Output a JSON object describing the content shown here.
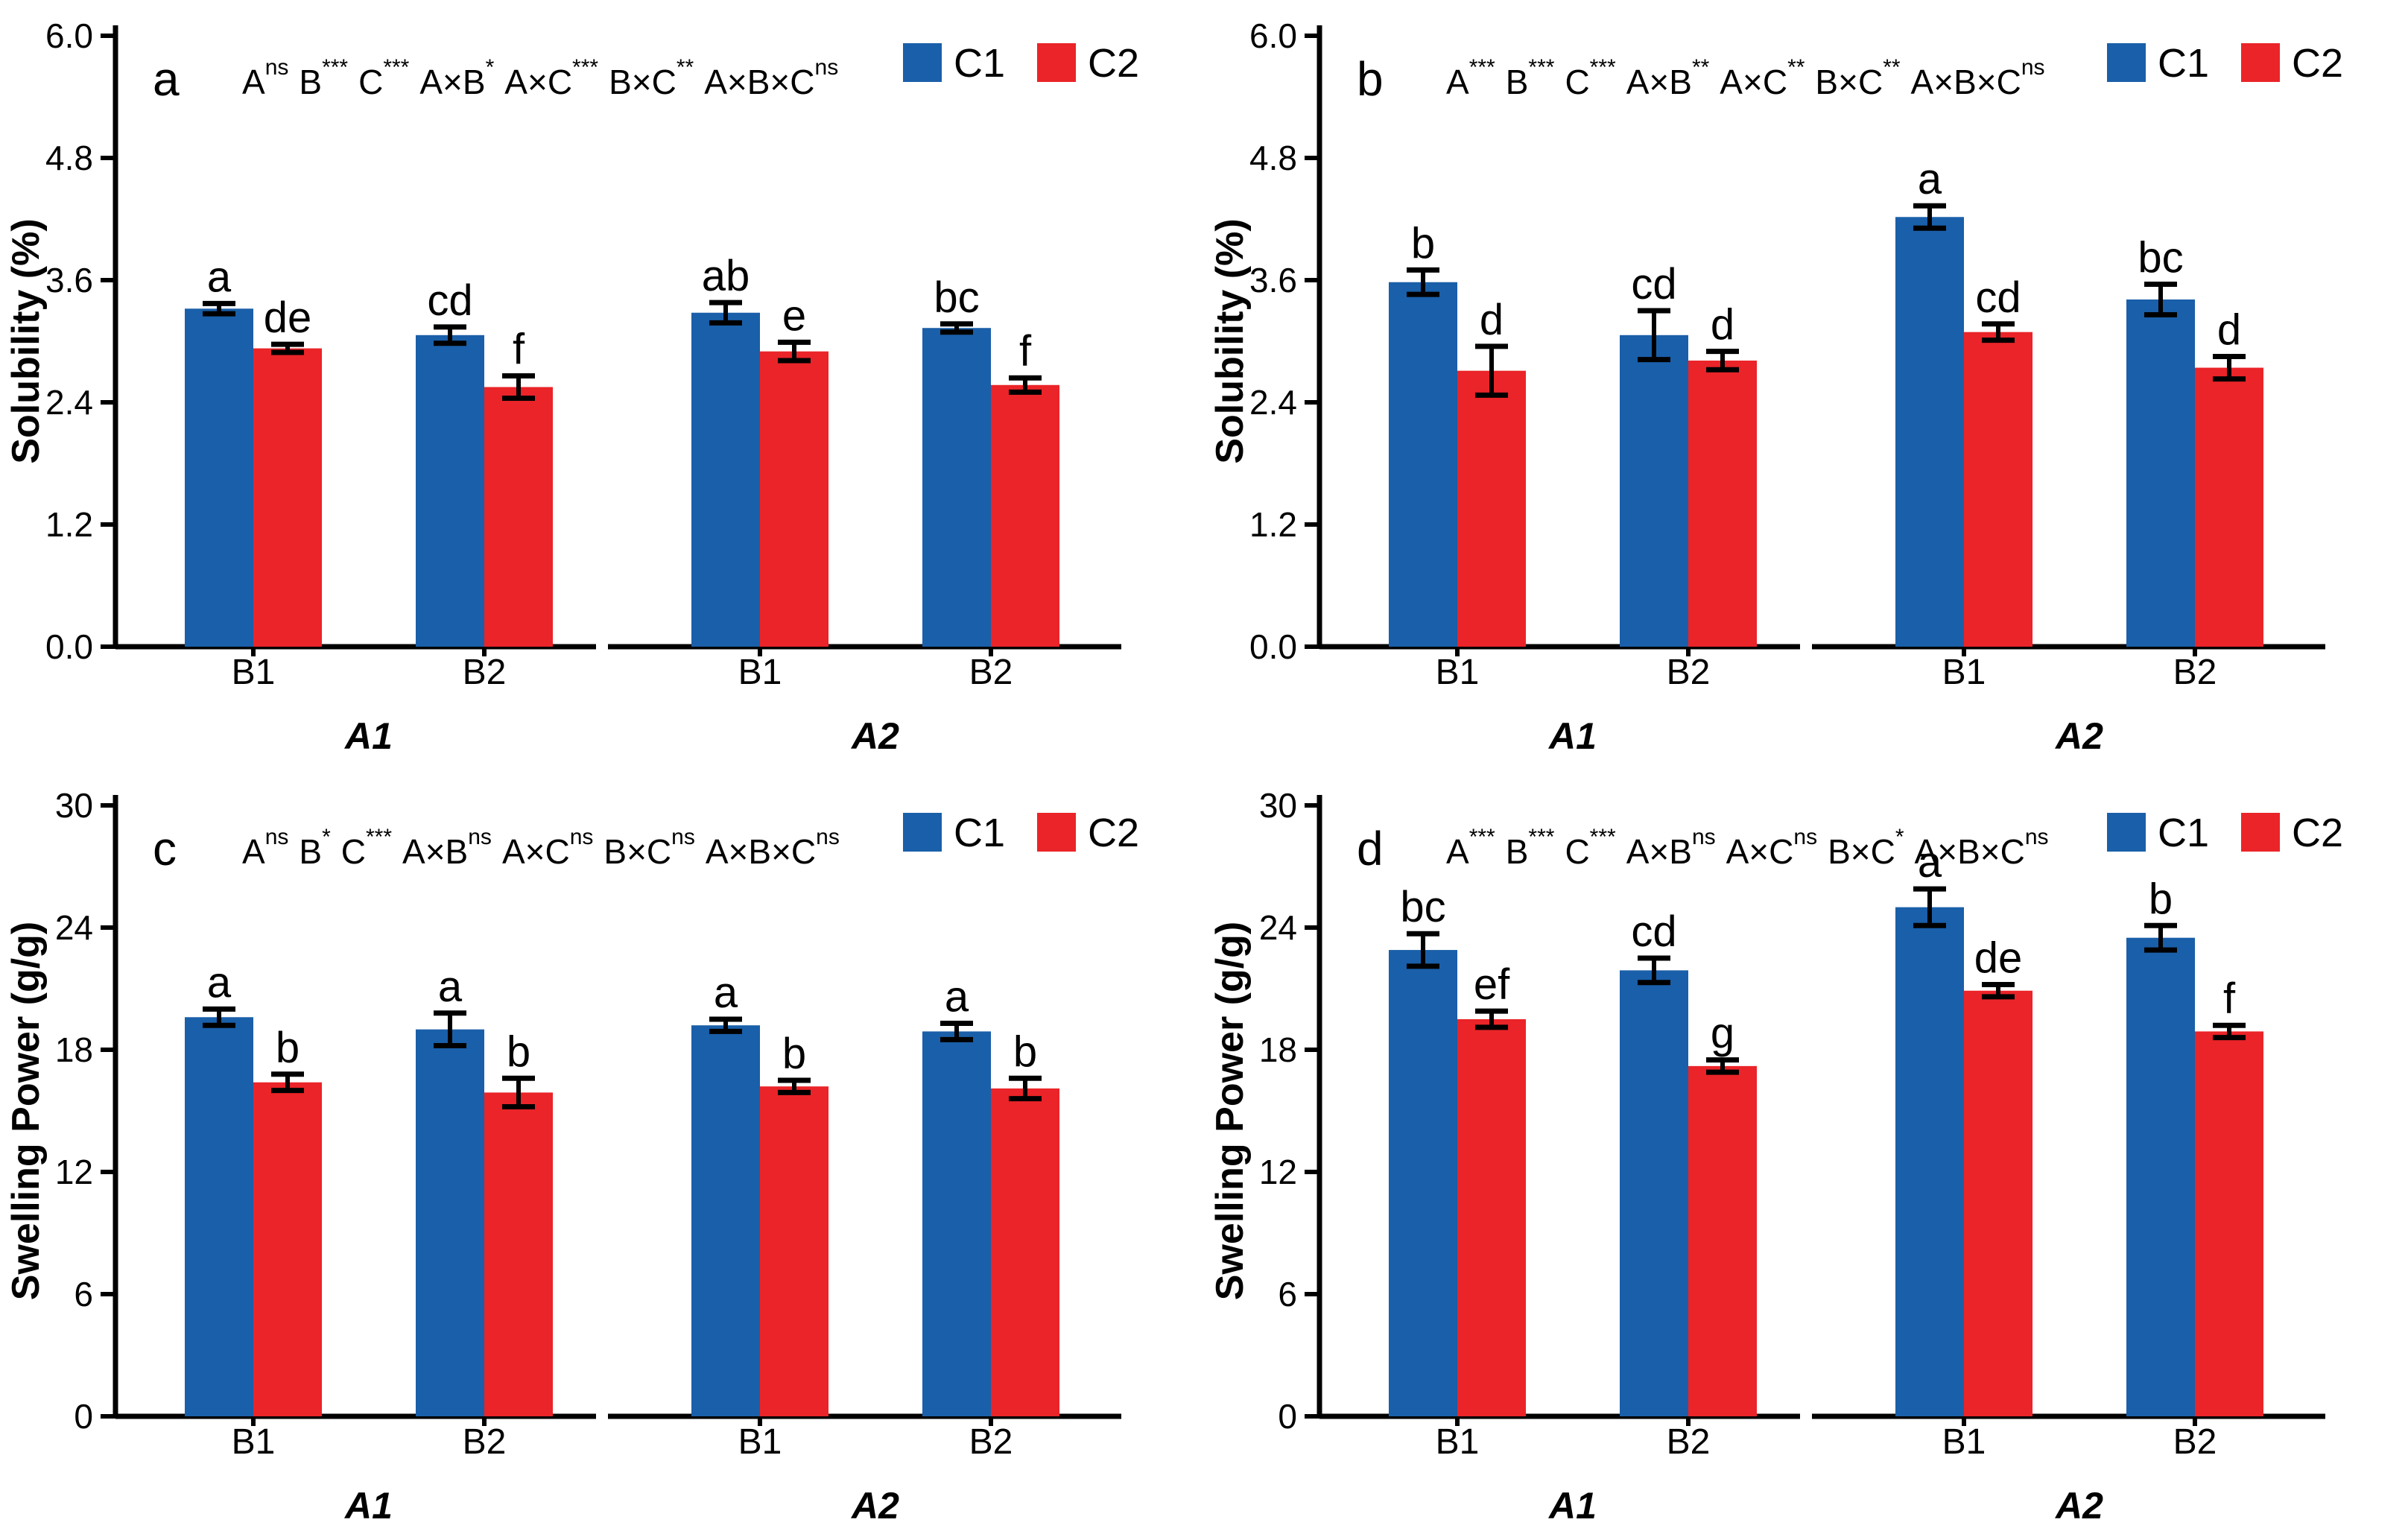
{
  "figure": {
    "background": "#ffffff",
    "text_color": "#000000"
  },
  "legend": {
    "items": [
      {
        "label": "C1",
        "color": "#1A5FA9"
      },
      {
        "label": "C2",
        "color": "#EA2428"
      }
    ]
  },
  "chart_data": {
    "type": "bar",
    "grid": "off",
    "legend_position": "top-right-inside",
    "series_colors": {
      "C1": "#1A5FA9",
      "C2": "#EA2428"
    },
    "panels": [
      {
        "panel_letter": "a",
        "ylabel": "Solubility (%)",
        "xlabel": "",
        "ylim": [
          0,
          6
        ],
        "ytick_labels": [
          "0.0",
          "1.2",
          "2.4",
          "3.6",
          "4.8",
          "6.0"
        ],
        "ytick_values": [
          0,
          1.2,
          2.4,
          3.6,
          4.8,
          6.0
        ],
        "stats": [
          {
            "term": "A",
            "sig": "ns"
          },
          {
            "term": "B",
            "sig": "***"
          },
          {
            "term": "C",
            "sig": "***"
          },
          {
            "term": "A×B",
            "sig": "*"
          },
          {
            "term": "A×C",
            "sig": "***"
          },
          {
            "term": "B×C",
            "sig": "**"
          },
          {
            "term": "A×B×C",
            "sig": "ns"
          }
        ],
        "groups": [
          {
            "label": "A1",
            "subgroups": [
              {
                "label": "B1",
                "bars": [
                  {
                    "series": "C1",
                    "value": 3.32,
                    "error": 0.05,
                    "letter": "a"
                  },
                  {
                    "series": "C2",
                    "value": 2.93,
                    "error": 0.04,
                    "letter": "de"
                  }
                ]
              },
              {
                "label": "B2",
                "bars": [
                  {
                    "series": "C1",
                    "value": 3.06,
                    "error": 0.08,
                    "letter": "cd"
                  },
                  {
                    "series": "C2",
                    "value": 2.55,
                    "error": 0.11,
                    "letter": "f"
                  }
                ]
              }
            ]
          },
          {
            "label": "A2",
            "subgroups": [
              {
                "label": "B1",
                "bars": [
                  {
                    "series": "C1",
                    "value": 3.28,
                    "error": 0.1,
                    "letter": "ab"
                  },
                  {
                    "series": "C2",
                    "value": 2.9,
                    "error": 0.09,
                    "letter": "e"
                  }
                ]
              },
              {
                "label": "B2",
                "bars": [
                  {
                    "series": "C1",
                    "value": 3.13,
                    "error": 0.04,
                    "letter": "bc"
                  },
                  {
                    "series": "C2",
                    "value": 2.57,
                    "error": 0.07,
                    "letter": "f"
                  }
                ]
              }
            ]
          }
        ]
      },
      {
        "panel_letter": "b",
        "ylabel": "Solubility (%)",
        "xlabel": "",
        "ylim": [
          0,
          6
        ],
        "ytick_labels": [
          "0.0",
          "1.2",
          "2.4",
          "3.6",
          "4.8",
          "6.0"
        ],
        "ytick_values": [
          0,
          1.2,
          2.4,
          3.6,
          4.8,
          6.0
        ],
        "stats": [
          {
            "term": "A",
            "sig": "***"
          },
          {
            "term": "B",
            "sig": "***"
          },
          {
            "term": "C",
            "sig": "***"
          },
          {
            "term": "A×B",
            "sig": "**"
          },
          {
            "term": "A×C",
            "sig": "**"
          },
          {
            "term": "B×C",
            "sig": "**"
          },
          {
            "term": "A×B×C",
            "sig": "ns"
          }
        ],
        "groups": [
          {
            "label": "A1",
            "subgroups": [
              {
                "label": "B1",
                "bars": [
                  {
                    "series": "C1",
                    "value": 3.58,
                    "error": 0.12,
                    "letter": "b"
                  },
                  {
                    "series": "C2",
                    "value": 2.71,
                    "error": 0.24,
                    "letter": "d"
                  }
                ]
              },
              {
                "label": "B2",
                "bars": [
                  {
                    "series": "C1",
                    "value": 3.06,
                    "error": 0.24,
                    "letter": "cd"
                  },
                  {
                    "series": "C2",
                    "value": 2.81,
                    "error": 0.09,
                    "letter": "d"
                  }
                ]
              }
            ]
          },
          {
            "label": "A2",
            "subgroups": [
              {
                "label": "B1",
                "bars": [
                  {
                    "series": "C1",
                    "value": 4.22,
                    "error": 0.11,
                    "letter": "a"
                  },
                  {
                    "series": "C2",
                    "value": 3.09,
                    "error": 0.08,
                    "letter": "cd"
                  }
                ]
              },
              {
                "label": "B2",
                "bars": [
                  {
                    "series": "C1",
                    "value": 3.41,
                    "error": 0.15,
                    "letter": "bc"
                  },
                  {
                    "series": "C2",
                    "value": 2.74,
                    "error": 0.11,
                    "letter": "d"
                  }
                ]
              }
            ]
          }
        ]
      },
      {
        "panel_letter": "c",
        "ylabel": "Swelling Power (g/g)",
        "xlabel": "",
        "ylim": [
          0,
          30
        ],
        "ytick_labels": [
          "0",
          "6",
          "12",
          "18",
          "24",
          "30"
        ],
        "ytick_values": [
          0,
          6,
          12,
          18,
          24,
          30
        ],
        "stats": [
          {
            "term": "A",
            "sig": "ns"
          },
          {
            "term": "B",
            "sig": "*"
          },
          {
            "term": "C",
            "sig": "***"
          },
          {
            "term": "A×B",
            "sig": "ns"
          },
          {
            "term": "A×C",
            "sig": "ns"
          },
          {
            "term": "B×C",
            "sig": "ns"
          },
          {
            "term": "A×B×C",
            "sig": "ns"
          }
        ],
        "groups": [
          {
            "label": "A1",
            "subgroups": [
              {
                "label": "B1",
                "bars": [
                  {
                    "series": "C1",
                    "value": 19.6,
                    "error": 0.4,
                    "letter": "a"
                  },
                  {
                    "series": "C2",
                    "value": 16.4,
                    "error": 0.4,
                    "letter": "b"
                  }
                ]
              },
              {
                "label": "B2",
                "bars": [
                  {
                    "series": "C1",
                    "value": 19.0,
                    "error": 0.8,
                    "letter": "a"
                  },
                  {
                    "series": "C2",
                    "value": 15.9,
                    "error": 0.7,
                    "letter": "b"
                  }
                ]
              }
            ]
          },
          {
            "label": "A2",
            "subgroups": [
              {
                "label": "B1",
                "bars": [
                  {
                    "series": "C1",
                    "value": 19.2,
                    "error": 0.3,
                    "letter": "a"
                  },
                  {
                    "series": "C2",
                    "value": 16.2,
                    "error": 0.3,
                    "letter": "b"
                  }
                ]
              },
              {
                "label": "B2",
                "bars": [
                  {
                    "series": "C1",
                    "value": 18.9,
                    "error": 0.4,
                    "letter": "a"
                  },
                  {
                    "series": "C2",
                    "value": 16.1,
                    "error": 0.5,
                    "letter": "b"
                  }
                ]
              }
            ]
          }
        ]
      },
      {
        "panel_letter": "d",
        "ylabel": "Swelling Power (g/g)",
        "xlabel": "",
        "ylim": [
          0,
          30
        ],
        "ytick_labels": [
          "0",
          "6",
          "12",
          "18",
          "24",
          "30"
        ],
        "ytick_values": [
          0,
          6,
          12,
          18,
          24,
          30
        ],
        "stats": [
          {
            "term": "A",
            "sig": "***"
          },
          {
            "term": "B",
            "sig": "***"
          },
          {
            "term": "C",
            "sig": "***"
          },
          {
            "term": "A×B",
            "sig": "ns"
          },
          {
            "term": "A×C",
            "sig": "ns"
          },
          {
            "term": "B×C",
            "sig": "*"
          },
          {
            "term": "A×B×C",
            "sig": "ns"
          }
        ],
        "groups": [
          {
            "label": "A1",
            "subgroups": [
              {
                "label": "B1",
                "bars": [
                  {
                    "series": "C1",
                    "value": 22.9,
                    "error": 0.8,
                    "letter": "bc"
                  },
                  {
                    "series": "C2",
                    "value": 19.5,
                    "error": 0.4,
                    "letter": "ef"
                  }
                ]
              },
              {
                "label": "B2",
                "bars": [
                  {
                    "series": "C1",
                    "value": 21.9,
                    "error": 0.6,
                    "letter": "cd"
                  },
                  {
                    "series": "C2",
                    "value": 17.2,
                    "error": 0.3,
                    "letter": "g"
                  }
                ]
              }
            ]
          },
          {
            "label": "A2",
            "subgroups": [
              {
                "label": "B1",
                "bars": [
                  {
                    "series": "C1",
                    "value": 25.0,
                    "error": 0.9,
                    "letter": "a"
                  },
                  {
                    "series": "C2",
                    "value": 20.9,
                    "error": 0.3,
                    "letter": "de"
                  }
                ]
              },
              {
                "label": "B2",
                "bars": [
                  {
                    "series": "C1",
                    "value": 23.5,
                    "error": 0.6,
                    "letter": "b"
                  },
                  {
                    "series": "C2",
                    "value": 18.9,
                    "error": 0.3,
                    "letter": "f"
                  }
                ]
              }
            ]
          }
        ]
      }
    ]
  }
}
